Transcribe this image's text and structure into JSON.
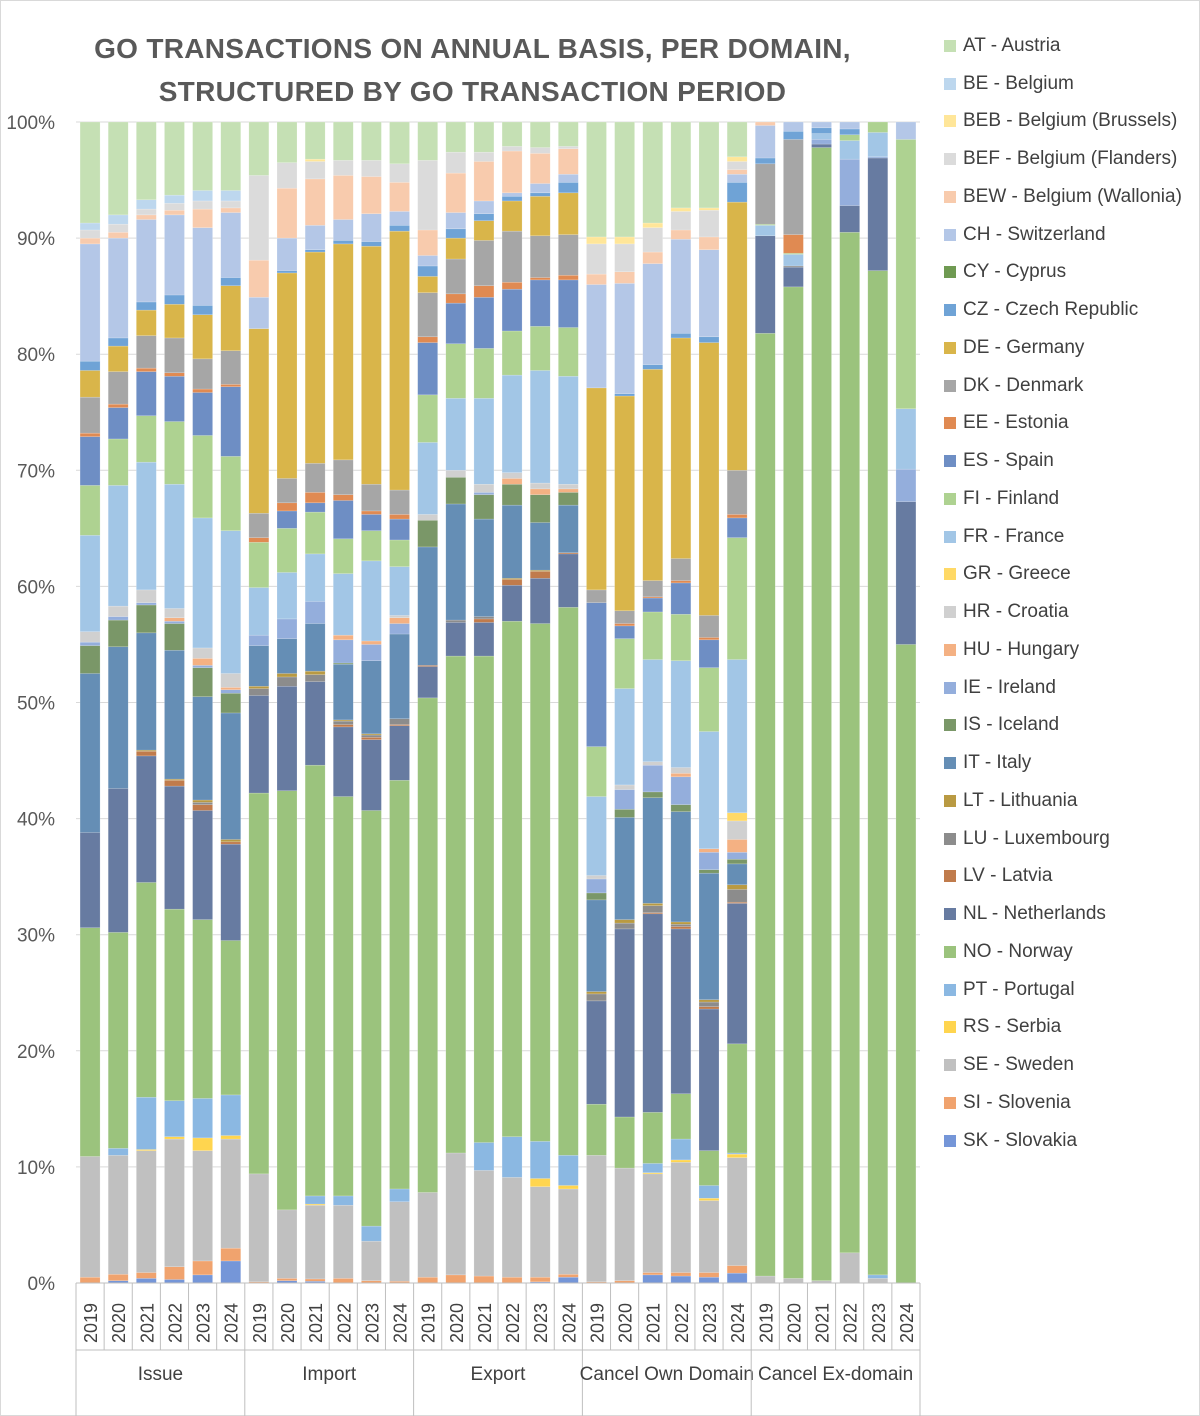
{
  "chart_data": {
    "type": "bar",
    "stacked": true,
    "percent_stacked": true,
    "title": "GO TRANSACTIONS ON ANNUAL BASIS, PER DOMAIN, STRUCTURED BY GO TRANSACTION PERIOD",
    "title_lines": [
      "GO TRANSACTIONS ON ANNUAL BASIS, PER DOMAIN,",
      "STRUCTURED BY GO TRANSACTION PERIOD"
    ],
    "xlabel": "",
    "ylabel": "",
    "ylim": [
      0,
      100
    ],
    "y_ticks": [
      "0%",
      "10%",
      "20%",
      "30%",
      "40%",
      "50%",
      "60%",
      "70%",
      "80%",
      "90%",
      "100%"
    ],
    "grid": true,
    "legend_position": "right",
    "groups": [
      {
        "label": "Issue",
        "years": [
          "2019",
          "2020",
          "2021",
          "2022",
          "2023",
          "2024"
        ]
      },
      {
        "label": "Import",
        "years": [
          "2019",
          "2020",
          "2021",
          "2022",
          "2023",
          "2024"
        ]
      },
      {
        "label": "Export",
        "years": [
          "2019",
          "2020",
          "2021",
          "2022",
          "2023",
          "2024"
        ]
      },
      {
        "label": "Cancel Own Domain",
        "years": [
          "2019",
          "2020",
          "2021",
          "2022",
          "2023",
          "2024"
        ]
      },
      {
        "label": "Cancel Ex-domain",
        "years": [
          "2019",
          "2020",
          "2021",
          "2022",
          "2023",
          "2024"
        ]
      }
    ],
    "series": [
      {
        "name": "AT - Austria",
        "color": "#c5e0b4",
        "values": [
          8.7,
          8.0,
          6.7,
          6.3,
          5.9,
          5.9,
          4.6,
          3.5,
          3.2,
          3.3,
          3.3,
          3.6,
          3.3,
          2.6,
          2.6,
          2.1,
          2.2,
          2.1,
          9.9,
          9.9,
          8.7,
          7.4,
          7.4,
          3.0,
          0,
          0,
          0,
          0,
          0,
          0
        ]
      },
      {
        "name": "BE - Belgium",
        "color": "#bdd7ee",
        "values": [
          0.6,
          0.8,
          0.8,
          0.7,
          0.9,
          0.9,
          0,
          0,
          0,
          0,
          0,
          0,
          0,
          0,
          0,
          0,
          0,
          0,
          0,
          0,
          0,
          0,
          0,
          0,
          0,
          0,
          0,
          0,
          0,
          0
        ]
      },
      {
        "name": "BEB - Belgium (Brussels)",
        "color": "#ffe699",
        "values": [
          0,
          0,
          0,
          0,
          0,
          0,
          0,
          0,
          0.2,
          0,
          0,
          0,
          0,
          0,
          0,
          0,
          0,
          0,
          0.6,
          0.6,
          0.4,
          0.3,
          0.2,
          0.4,
          0,
          0,
          0,
          0,
          0,
          0
        ]
      },
      {
        "name": "BEF - Belgium (Flanders)",
        "color": "#dbdbdb",
        "values": [
          0.7,
          0.7,
          0.5,
          0.6,
          0.7,
          0.6,
          7.3,
          2.2,
          1.5,
          1.3,
          1.4,
          1.6,
          6.0,
          1.8,
          0.8,
          0.4,
          0.5,
          0.2,
          2.6,
          2.4,
          2.1,
          1.6,
          2.3,
          0.7,
          0,
          0,
          0,
          0,
          0,
          0
        ]
      },
      {
        "name": "BEW - Belgium (Wallonia)",
        "color": "#f8cbad",
        "values": [
          0.5,
          0.5,
          0.4,
          0.4,
          1.6,
          0.4,
          3.2,
          4.3,
          4.0,
          3.8,
          3.2,
          2.5,
          2.2,
          3.4,
          3.4,
          3.6,
          2.6,
          2.2,
          0.9,
          1.0,
          1.0,
          0.8,
          1.1,
          0.4,
          0.3,
          0,
          0,
          0,
          0,
          0
        ]
      },
      {
        "name": "CH - Switzerland",
        "color": "#b4c7e7",
        "values": [
          10.1,
          8.6,
          7.1,
          6.9,
          6.7,
          5.6,
          2.7,
          2.8,
          2.1,
          1.8,
          2.4,
          1.2,
          0.9,
          1.4,
          1.1,
          0.3,
          0.8,
          0.7,
          8.9,
          9.5,
          8.7,
          8.1,
          7.5,
          0.7,
          2.8,
          0.8,
          0.5,
          0.6,
          0,
          1.5
        ]
      },
      {
        "name": "CY - Cyprus",
        "color": "#6f9a52",
        "values": [
          0,
          0,
          0,
          0,
          0,
          0,
          0,
          0,
          0,
          0,
          0,
          0,
          0,
          0,
          0,
          0,
          0,
          0,
          0,
          0,
          0,
          0,
          0,
          0,
          0,
          0,
          0,
          0,
          0,
          0
        ]
      },
      {
        "name": "CZ - Czech Republic",
        "color": "#6fa3d6",
        "values": [
          0.8,
          0.7,
          0.7,
          0.8,
          0.8,
          0.7,
          0,
          0.2,
          0.2,
          0.3,
          0.4,
          0.5,
          0.9,
          0.8,
          0.6,
          0.4,
          0.3,
          0.9,
          0,
          0.2,
          0.4,
          0.4,
          0.5,
          1.7,
          0.5,
          0.7,
          0.5,
          0.5,
          0,
          0
        ]
      },
      {
        "name": "DE - Germany",
        "color": "#d9b54a",
        "values": [
          2.3,
          2.2,
          2.2,
          2.9,
          3.8,
          5.6,
          15.9,
          17.7,
          18.2,
          18.6,
          20.5,
          22.3,
          1.4,
          1.8,
          1.7,
          2.6,
          3.4,
          3.6,
          17.4,
          18.5,
          18.2,
          19.0,
          23.5,
          23.1,
          0,
          0,
          0,
          0,
          0,
          0
        ]
      },
      {
        "name": "DK - Denmark",
        "color": "#a6a6a6",
        "values": [
          3.1,
          2.8,
          2.8,
          3.0,
          2.6,
          2.9,
          2.1,
          2.1,
          2.5,
          3.0,
          2.3,
          2.1,
          3.8,
          3.0,
          3.9,
          4.4,
          3.6,
          3.5,
          1.1,
          1.1,
          1.4,
          1.9,
          1.9,
          3.8,
          5.2,
          8.2,
          0,
          0,
          0,
          0
        ]
      },
      {
        "name": "EE - Estonia",
        "color": "#e08a52",
        "values": [
          0.3,
          0.3,
          0.3,
          0.3,
          0.3,
          0.2,
          0.4,
          0.7,
          0.9,
          0.5,
          0.3,
          0.4,
          0.5,
          0.8,
          1.0,
          0.6,
          0.2,
          0.4,
          0,
          0.2,
          0.1,
          0.2,
          0.2,
          0.3,
          0,
          1.6,
          0,
          0,
          0,
          0
        ]
      },
      {
        "name": "ES - Spain",
        "color": "#6e8ec4",
        "values": [
          4.2,
          2.7,
          3.8,
          3.9,
          3.7,
          6.0,
          0,
          1.5,
          0.8,
          3.3,
          1.4,
          1.8,
          4.5,
          3.5,
          4.4,
          3.6,
          4.0,
          4.1,
          12.4,
          1.1,
          1.2,
          2.7,
          2.4,
          1.7,
          0,
          0,
          0,
          0,
          0,
          0
        ]
      },
      {
        "name": "FI - Finland",
        "color": "#aed291",
        "values": [
          4.3,
          4.0,
          4.0,
          5.4,
          7.1,
          6.4,
          3.9,
          3.8,
          3.6,
          3.0,
          2.6,
          2.3,
          4.1,
          4.7,
          4.3,
          3.8,
          3.8,
          4.2,
          4.3,
          4.3,
          4.1,
          4.0,
          5.5,
          10.5,
          0.1,
          0.1,
          0,
          0.5,
          0.9,
          23.2
        ]
      },
      {
        "name": "FR - France",
        "color": "#a2c6e6",
        "values": [
          8.3,
          10.4,
          11.0,
          10.7,
          11.2,
          12.3,
          4.1,
          4.0,
          4.1,
          5.3,
          6.9,
          4.2,
          6.2,
          6.2,
          7.4,
          8.4,
          9.7,
          9.3,
          6.8,
          8.3,
          8.8,
          9.2,
          10.1,
          13.2,
          0.9,
          1.0,
          0.5,
          1.6,
          2.1,
          5.2
        ]
      },
      {
        "name": "GR - Greece",
        "color": "#ffd966",
        "values": [
          0,
          0,
          0,
          0,
          0,
          0,
          0,
          0,
          0,
          0,
          0,
          0,
          0,
          0,
          0,
          0,
          0,
          0,
          0,
          0,
          0,
          0,
          0,
          0.7,
          0,
          0,
          0,
          0,
          0,
          0
        ]
      },
      {
        "name": "HR - Croatia",
        "color": "#d0d0d0",
        "values": [
          0.9,
          0.9,
          1.1,
          0.8,
          0.9,
          1.2,
          0,
          0,
          0,
          0,
          0,
          0.2,
          0.5,
          0.6,
          0.7,
          0.5,
          0.5,
          0.4,
          0.3,
          0.4,
          0.3,
          0.5,
          0,
          1.6,
          0,
          0,
          0,
          0,
          0,
          0
        ]
      },
      {
        "name": "HU - Hungary",
        "color": "#f4b183",
        "values": [
          0,
          0,
          0,
          0.3,
          0.6,
          0.2,
          0,
          0,
          0,
          0.4,
          0.3,
          0.5,
          0,
          0,
          0,
          0.5,
          0.5,
          0.3,
          0,
          0,
          0,
          0.3,
          0.3,
          1.1,
          0,
          0,
          0,
          0,
          0,
          0
        ]
      },
      {
        "name": "IE - Ireland",
        "color": "#94aedc",
        "values": [
          0.3,
          0.3,
          0.2,
          0.2,
          0.2,
          0.3,
          0.9,
          1.7,
          1.9,
          2.0,
          1.4,
          0.9,
          0,
          0,
          0.2,
          0,
          0,
          0,
          1.2,
          1.7,
          2.3,
          2.4,
          1.5,
          0.6,
          0,
          0,
          0.4,
          4.0,
          0.1,
          2.8
        ]
      },
      {
        "name": "IS - Iceland",
        "color": "#7a9768",
        "values": [
          2.4,
          2.3,
          2.4,
          2.3,
          2.5,
          1.7,
          0,
          0,
          0,
          0.1,
          0,
          0,
          2.3,
          2.3,
          2.1,
          1.8,
          2.4,
          1.1,
          0.6,
          0.7,
          0.5,
          0.6,
          0.3,
          0.4,
          0,
          0,
          0,
          0,
          0,
          0
        ]
      },
      {
        "name": "IT - Italy",
        "color": "#658eb5",
        "values": [
          13.7,
          12.2,
          10.1,
          11.1,
          8.9,
          10.9,
          3.5,
          3.0,
          4.1,
          4.8,
          6.3,
          7.3,
          10.2,
          10.0,
          8.4,
          6.3,
          4.1,
          4.1,
          7.9,
          8.8,
          9.1,
          9.5,
          10.9,
          1.8,
          0,
          0,
          0,
          0,
          0,
          0
        ]
      },
      {
        "name": "LT - Lithuania",
        "color": "#b99a42",
        "values": [
          0,
          0,
          0.1,
          0.1,
          0.2,
          0.2,
          0.2,
          0.3,
          0.3,
          0.1,
          0.1,
          0,
          0,
          0,
          0,
          0.1,
          0.1,
          0,
          0.2,
          0.3,
          0.2,
          0.2,
          0.2,
          0.4,
          0,
          0,
          0,
          0,
          0,
          0
        ]
      },
      {
        "name": "LU - Luxembourg",
        "color": "#8c8c8c",
        "values": [
          0,
          0,
          0,
          0,
          0.2,
          0,
          0.6,
          0.8,
          0.6,
          0.3,
          0.2,
          0.5,
          0,
          0.2,
          0.2,
          0,
          0,
          0,
          0.6,
          0.5,
          0.6,
          0.2,
          0.4,
          1.1,
          0,
          0.1,
          0,
          0,
          0,
          0
        ]
      },
      {
        "name": "LV - Latvia",
        "color": "#c07b4c",
        "values": [
          0,
          0,
          0.4,
          0.5,
          0.5,
          0.2,
          0,
          0,
          0,
          0.2,
          0.2,
          0.1,
          0.1,
          0,
          0.3,
          0.5,
          0.6,
          0.1,
          0,
          0,
          0.1,
          0.2,
          0.2,
          0.1,
          0,
          0,
          0,
          0,
          0,
          0
        ]
      },
      {
        "name": "NL - Netherlands",
        "color": "#677ba1",
        "values": [
          8.2,
          12.4,
          10.9,
          10.6,
          9.4,
          8.3,
          8.4,
          9.0,
          7.2,
          6.0,
          6.1,
          4.7,
          2.7,
          2.9,
          2.9,
          3.1,
          3.9,
          4.6,
          8.9,
          16.2,
          17.1,
          14.2,
          12.2,
          12.1,
          8.4,
          1.7,
          0.3,
          2.3,
          9.7,
          12.3
        ]
      },
      {
        "name": "NO - Norway",
        "color": "#9bc37d",
        "values": [
          19.7,
          18.6,
          18.5,
          16.5,
          15.4,
          13.3,
          32.8,
          36.1,
          37.1,
          34.4,
          35.8,
          35.2,
          42.6,
          42.8,
          41.9,
          44.4,
          44.6,
          47.2,
          4.4,
          4.4,
          4.4,
          3.9,
          3.0,
          9.4,
          81.2,
          85.4,
          97.6,
          87.9,
          86.5,
          55.0
        ]
      },
      {
        "name": "PT - Portugal",
        "color": "#8bb8e2",
        "values": [
          0,
          0.6,
          4.5,
          3.1,
          3.4,
          3.5,
          0,
          0,
          0.7,
          0.8,
          1.3,
          1.1,
          0,
          0,
          2.4,
          3.5,
          3.2,
          2.6,
          0,
          0,
          0.8,
          1.8,
          1.1,
          0.1,
          0,
          0,
          0,
          0,
          0.3,
          0
        ]
      },
      {
        "name": "RS - Serbia",
        "color": "#ffd54f",
        "values": [
          0,
          0,
          0.1,
          0.2,
          1.1,
          0.3,
          0,
          0,
          0.1,
          0,
          0,
          0,
          0,
          0,
          0,
          0,
          0.7,
          0.3,
          0,
          0,
          0.1,
          0.2,
          0.2,
          0.3,
          0,
          0,
          0,
          0,
          0,
          0
        ]
      },
      {
        "name": "SE - Sweden",
        "color": "#c0c0c0",
        "values": [
          10.4,
          10.25,
          10.5,
          11.0,
          9.5,
          9.4,
          9.3,
          5.9,
          6.35,
          6.3,
          3.4,
          6.85,
          7.3,
          10.5,
          9.1,
          8.6,
          7.8,
          7.35,
          10.9,
          9.7,
          8.5,
          9.5,
          6.2,
          9.3,
          0.6,
          0.4,
          0.2,
          2.6,
          0.4,
          0
        ]
      },
      {
        "name": "SI - Slovenia",
        "color": "#f0a36e",
        "values": [
          0.5,
          0.55,
          0.5,
          1.1,
          1.2,
          1.1,
          0.1,
          0.2,
          0.2,
          0.4,
          0.2,
          0.15,
          0.5,
          0.7,
          0.6,
          0.5,
          0.4,
          0.25,
          0.1,
          0.2,
          0.2,
          0.3,
          0.4,
          0.65,
          0,
          0,
          0,
          0,
          0,
          0
        ]
      },
      {
        "name": "SK - Slovakia",
        "color": "#7596d8",
        "values": [
          0,
          0.2,
          0.4,
          0.3,
          0.7,
          1.9,
          0,
          0.2,
          0.15,
          0,
          0,
          0,
          0,
          0,
          0,
          0,
          0.1,
          0.5,
          0,
          0,
          0.7,
          0.6,
          0.5,
          0.85,
          0,
          0,
          0,
          0,
          0,
          0
        ]
      }
    ]
  }
}
